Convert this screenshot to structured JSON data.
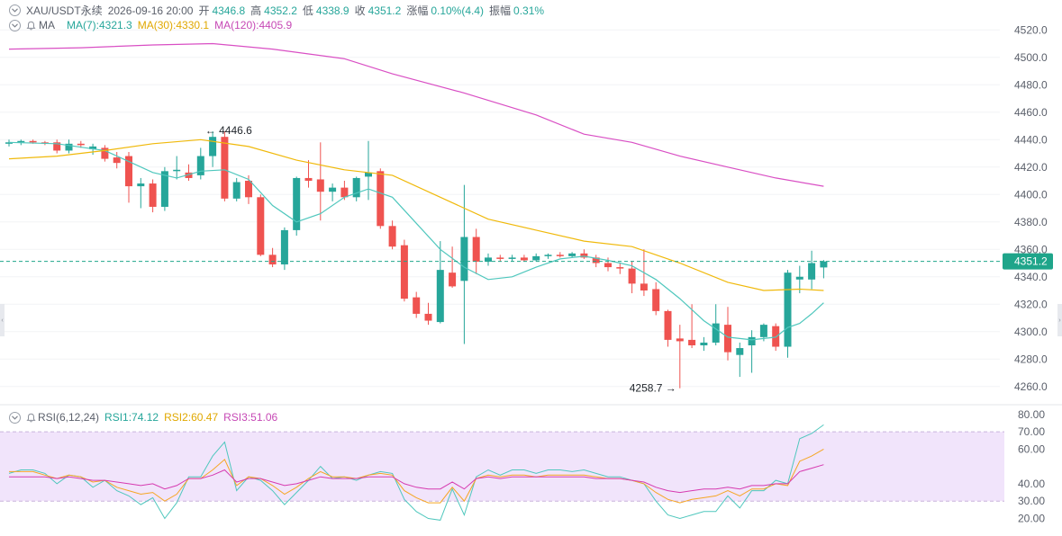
{
  "header": {
    "symbol": "XAU/USDT永续",
    "datetime": "2026-09-16 20:00",
    "open_label": "开",
    "open": "4346.8",
    "high_label": "高",
    "high": "4352.2",
    "low_label": "低",
    "low": "4338.9",
    "close_label": "收",
    "close": "4351.2",
    "change_label": "涨幅",
    "change": "0.10%(4.4)",
    "amplitude_label": "振幅",
    "amplitude": "0.31%"
  },
  "ma_legend": {
    "label": "MA",
    "ma7": "MA(7):4321.3",
    "ma30": "MA(30):4330.1",
    "ma120": "MA(120):4405.9"
  },
  "rsi_legend": {
    "label": "RSI(6,12,24)",
    "rsi1": "RSI1:74.12",
    "rsi2": "RSI2:60.47",
    "rsi3": "RSI3:51.06"
  },
  "colors": {
    "up": "#26a69a",
    "down": "#ef5350",
    "ma7": "#4fc7bd",
    "ma30": "#f0b90b",
    "ma120": "#d94fc4",
    "rsi1": "#4fc7bd",
    "rsi2": "#f5a623",
    "rsi3": "#d63ab0",
    "rsi_band": "#f1e4fb",
    "price_tag": "#1fa58a"
  },
  "chart_data": [
    {
      "type": "candlestick",
      "ylim": [
        4250,
        4530
      ],
      "y_ticks": [
        "4520.0",
        "4500.0",
        "4480.0",
        "4460.0",
        "4440.0",
        "4420.0",
        "4400.0",
        "4380.0",
        "4360.0",
        "4340.0",
        "4320.0",
        "4300.0",
        "4280.0",
        "4260.0"
      ],
      "last_price": "4351.2",
      "last_price_value": 4351.2,
      "annotations": [
        {
          "text": "4446.6",
          "value": 4446.6,
          "index": 16,
          "side": "right"
        },
        {
          "text": "4258.7",
          "value": 4258.7,
          "index": 56,
          "side": "left"
        }
      ],
      "candles": [
        {
          "o": 4437,
          "h": 4440,
          "l": 4435,
          "c": 4438
        },
        {
          "o": 4438,
          "h": 4440,
          "l": 4436,
          "c": 4439
        },
        {
          "o": 4439,
          "h": 4440,
          "l": 4437,
          "c": 4438
        },
        {
          "o": 4438,
          "h": 4439,
          "l": 4436,
          "c": 4437
        },
        {
          "o": 4438,
          "h": 4440,
          "l": 4430,
          "c": 4432
        },
        {
          "o": 4432,
          "h": 4440,
          "l": 4430,
          "c": 4437
        },
        {
          "o": 4437,
          "h": 4439,
          "l": 4434,
          "c": 4436
        },
        {
          "o": 4433,
          "h": 4437,
          "l": 4429,
          "c": 4435
        },
        {
          "o": 4434,
          "h": 4436,
          "l": 4424,
          "c": 4426
        },
        {
          "o": 4427,
          "h": 4431,
          "l": 4419,
          "c": 4423
        },
        {
          "o": 4428,
          "h": 4431,
          "l": 4394,
          "c": 4406
        },
        {
          "o": 4406,
          "h": 4412,
          "l": 4390,
          "c": 4408
        },
        {
          "o": 4408,
          "h": 4411,
          "l": 4387,
          "c": 4391
        },
        {
          "o": 4391,
          "h": 4420,
          "l": 4388,
          "c": 4417
        },
        {
          "o": 4417,
          "h": 4428,
          "l": 4411,
          "c": 4418
        },
        {
          "o": 4416,
          "h": 4422,
          "l": 4410,
          "c": 4412
        },
        {
          "o": 4414,
          "h": 4434,
          "l": 4411,
          "c": 4428
        },
        {
          "o": 4428,
          "h": 4446,
          "l": 4420,
          "c": 4442
        },
        {
          "o": 4442,
          "h": 4446,
          "l": 4395,
          "c": 4397
        },
        {
          "o": 4397,
          "h": 4412,
          "l": 4395,
          "c": 4409
        },
        {
          "o": 4410,
          "h": 4414,
          "l": 4393,
          "c": 4398
        },
        {
          "o": 4398,
          "h": 4400,
          "l": 4355,
          "c": 4356
        },
        {
          "o": 4356,
          "h": 4361,
          "l": 4347,
          "c": 4349
        },
        {
          "o": 4349,
          "h": 4376,
          "l": 4345,
          "c": 4374
        },
        {
          "o": 4374,
          "h": 4413,
          "l": 4370,
          "c": 4412
        },
        {
          "o": 4412,
          "h": 4425,
          "l": 4405,
          "c": 4410
        },
        {
          "o": 4411,
          "h": 4438,
          "l": 4381,
          "c": 4402
        },
        {
          "o": 4402,
          "h": 4408,
          "l": 4395,
          "c": 4405
        },
        {
          "o": 4405,
          "h": 4410,
          "l": 4396,
          "c": 4398
        },
        {
          "o": 4398,
          "h": 4413,
          "l": 4395,
          "c": 4412
        },
        {
          "o": 4413,
          "h": 4439,
          "l": 4396,
          "c": 4416
        },
        {
          "o": 4417,
          "h": 4419,
          "l": 4375,
          "c": 4377
        },
        {
          "o": 4377,
          "h": 4381,
          "l": 4360,
          "c": 4362
        },
        {
          "o": 4363,
          "h": 4367,
          "l": 4322,
          "c": 4324
        },
        {
          "o": 4325,
          "h": 4329,
          "l": 4310,
          "c": 4313
        },
        {
          "o": 4313,
          "h": 4321,
          "l": 4305,
          "c": 4308
        },
        {
          "o": 4307,
          "h": 4366,
          "l": 4306,
          "c": 4345
        },
        {
          "o": 4343,
          "h": 4362,
          "l": 4332,
          "c": 4333
        },
        {
          "o": 4337,
          "h": 4407,
          "l": 4291,
          "c": 4369
        },
        {
          "o": 4369,
          "h": 4375,
          "l": 4342,
          "c": 4351
        },
        {
          "o": 4351,
          "h": 4357,
          "l": 4348,
          "c": 4354
        },
        {
          "o": 4354,
          "h": 4356,
          "l": 4351,
          "c": 4353
        },
        {
          "o": 4353,
          "h": 4356,
          "l": 4351,
          "c": 4354
        },
        {
          "o": 4354,
          "h": 4356,
          "l": 4351,
          "c": 4352
        },
        {
          "o": 4352,
          "h": 4357,
          "l": 4351,
          "c": 4355
        },
        {
          "o": 4355,
          "h": 4357,
          "l": 4353,
          "c": 4356
        },
        {
          "o": 4356,
          "h": 4358,
          "l": 4354,
          "c": 4355
        },
        {
          "o": 4355,
          "h": 4358,
          "l": 4354,
          "c": 4357
        },
        {
          "o": 4357,
          "h": 4360,
          "l": 4353,
          "c": 4354
        },
        {
          "o": 4354,
          "h": 4356,
          "l": 4347,
          "c": 4350
        },
        {
          "o": 4350,
          "h": 4354,
          "l": 4344,
          "c": 4347
        },
        {
          "o": 4347,
          "h": 4350,
          "l": 4342,
          "c": 4346
        },
        {
          "o": 4346,
          "h": 4351,
          "l": 4328,
          "c": 4335
        },
        {
          "o": 4335,
          "h": 4360,
          "l": 4326,
          "c": 4330
        },
        {
          "o": 4331,
          "h": 4336,
          "l": 4312,
          "c": 4315
        },
        {
          "o": 4315,
          "h": 4316,
          "l": 4289,
          "c": 4294
        },
        {
          "o": 4295,
          "h": 4305,
          "l": 4258.7,
          "c": 4293
        },
        {
          "o": 4294,
          "h": 4320,
          "l": 4288,
          "c": 4290
        },
        {
          "o": 4290,
          "h": 4296,
          "l": 4286,
          "c": 4292
        },
        {
          "o": 4292,
          "h": 4320,
          "l": 4290,
          "c": 4306
        },
        {
          "o": 4305,
          "h": 4318,
          "l": 4279,
          "c": 4285
        },
        {
          "o": 4283,
          "h": 4292,
          "l": 4267,
          "c": 4288
        },
        {
          "o": 4290,
          "h": 4301,
          "l": 4270,
          "c": 4296
        },
        {
          "o": 4296,
          "h": 4306,
          "l": 4293,
          "c": 4305
        },
        {
          "o": 4304,
          "h": 4306,
          "l": 4286,
          "c": 4289
        },
        {
          "o": 4289,
          "h": 4345,
          "l": 4281,
          "c": 4343
        },
        {
          "o": 4338,
          "h": 4348,
          "l": 4328,
          "c": 4340
        },
        {
          "o": 4338,
          "h": 4359,
          "l": 4331,
          "c": 4350
        },
        {
          "o": 4346.8,
          "h": 4352.2,
          "l": 4338.9,
          "c": 4351.2
        }
      ],
      "ma_lines": [
        {
          "name": "MA(7)",
          "points": [
            [
              0,
              4438
            ],
            [
              4,
              4437
            ],
            [
              8,
              4432
            ],
            [
              10,
              4424
            ],
            [
              12,
              4416
            ],
            [
              14,
              4412
            ],
            [
              16,
              4417
            ],
            [
              18,
              4418
            ],
            [
              20,
              4411
            ],
            [
              22,
              4392
            ],
            [
              24,
              4380
            ],
            [
              26,
              4386
            ],
            [
              28,
              4398
            ],
            [
              30,
              4404
            ],
            [
              32,
              4398
            ],
            [
              34,
              4379
            ],
            [
              36,
              4360
            ],
            [
              38,
              4347
            ],
            [
              40,
              4338
            ],
            [
              42,
              4340
            ],
            [
              44,
              4347
            ],
            [
              46,
              4353
            ],
            [
              48,
              4355
            ],
            [
              50,
              4352
            ],
            [
              52,
              4348
            ],
            [
              54,
              4338
            ],
            [
              56,
              4324
            ],
            [
              58,
              4308
            ],
            [
              60,
              4296
            ],
            [
              62,
              4294
            ],
            [
              64,
              4296
            ],
            [
              65,
              4303
            ],
            [
              66,
              4306
            ],
            [
              67,
              4313
            ],
            [
              68,
              4321
            ]
          ]
        },
        {
          "name": "MA(30)",
          "points": [
            [
              0,
              4426
            ],
            [
              4,
              4428
            ],
            [
              8,
              4432
            ],
            [
              12,
              4437
            ],
            [
              16,
              4440
            ],
            [
              20,
              4435
            ],
            [
              24,
              4425
            ],
            [
              28,
              4418
            ],
            [
              32,
              4414
            ],
            [
              36,
              4398
            ],
            [
              40,
              4382
            ],
            [
              44,
              4374
            ],
            [
              48,
              4366
            ],
            [
              52,
              4362
            ],
            [
              56,
              4350
            ],
            [
              60,
              4336
            ],
            [
              63,
              4330
            ],
            [
              66,
              4331
            ],
            [
              68,
              4330
            ]
          ]
        },
        {
          "name": "MA(120)",
          "points": [
            [
              0,
              4506
            ],
            [
              6,
              4507
            ],
            [
              12,
              4509
            ],
            [
              17,
              4510
            ],
            [
              22,
              4506
            ],
            [
              28,
              4499
            ],
            [
              32,
              4488
            ],
            [
              38,
              4474
            ],
            [
              44,
              4458
            ],
            [
              48,
              4444
            ],
            [
              52,
              4438
            ],
            [
              56,
              4428
            ],
            [
              60,
              4420
            ],
            [
              64,
              4412
            ],
            [
              68,
              4406
            ]
          ]
        }
      ]
    },
    {
      "type": "line",
      "ylim": [
        13,
        83
      ],
      "y_ticks": [
        "80.00",
        "70.00",
        "60.00",
        "40.00",
        "30.00",
        "20.00"
      ],
      "band": [
        30,
        70
      ],
      "series": [
        {
          "name": "RSI1",
          "values": [
            46,
            48,
            48,
            46,
            40,
            45,
            44,
            38,
            42,
            36,
            33,
            28,
            32,
            20,
            29,
            44,
            44,
            56,
            64,
            36,
            44,
            42,
            36,
            28,
            35,
            42,
            50,
            43,
            44,
            42,
            45,
            47,
            46,
            31,
            24,
            20,
            19,
            37,
            22,
            44,
            48,
            45,
            48,
            48,
            46,
            48,
            48,
            47,
            48,
            46,
            44,
            44,
            42,
            40,
            30,
            22,
            20,
            22,
            24,
            24,
            33,
            26,
            36,
            36,
            42,
            40,
            66,
            69,
            74
          ]
        },
        {
          "name": "RSI2",
          "values": [
            47,
            47,
            47,
            45,
            43,
            45,
            44,
            41,
            42,
            38,
            36,
            34,
            35,
            30,
            34,
            43,
            43,
            48,
            54,
            39,
            44,
            43,
            39,
            34,
            38,
            43,
            47,
            44,
            44,
            43,
            45,
            46,
            45,
            36,
            32,
            29,
            29,
            38,
            30,
            43,
            45,
            44,
            45,
            45,
            44,
            45,
            45,
            45,
            45,
            44,
            43,
            43,
            42,
            40,
            35,
            31,
            29,
            31,
            32,
            33,
            36,
            33,
            37,
            37,
            40,
            39,
            53,
            56,
            60
          ]
        },
        {
          "name": "RSI3",
          "values": [
            44,
            44,
            44,
            44,
            43,
            44,
            43,
            42,
            42,
            41,
            40,
            39,
            40,
            37,
            39,
            43,
            43,
            45,
            48,
            41,
            43,
            43,
            41,
            39,
            40,
            42,
            44,
            43,
            43,
            43,
            44,
            44,
            44,
            40,
            38,
            37,
            37,
            41,
            37,
            43,
            44,
            43,
            44,
            44,
            44,
            44,
            44,
            44,
            44,
            43,
            43,
            43,
            42,
            41,
            38,
            36,
            35,
            36,
            37,
            37,
            38,
            37,
            39,
            39,
            40,
            40,
            47,
            49,
            51
          ]
        }
      ]
    }
  ]
}
